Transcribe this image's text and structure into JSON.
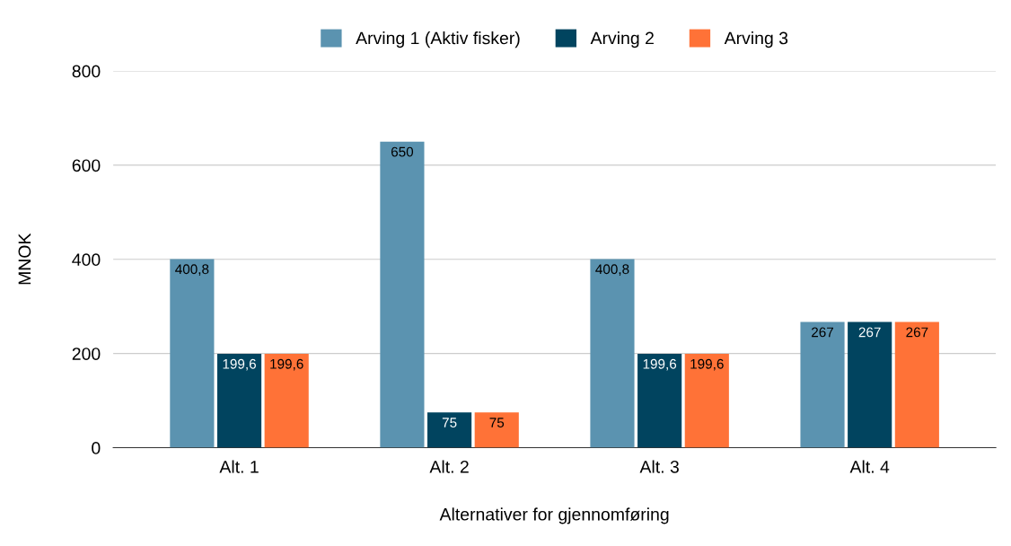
{
  "chart_data": {
    "type": "bar",
    "xlabel": "Alternativer for gjennomføring",
    "ylabel": "MNOK",
    "categories": [
      "Alt. 1",
      "Alt. 2",
      "Alt. 3",
      "Alt. 4"
    ],
    "series": [
      {
        "name": "Arving 1 (Aktiv fisker)",
        "color": "#5b93b0",
        "values": [
          400.8,
          650,
          400.8,
          267
        ],
        "value_labels": [
          "400,8",
          "650",
          "400,8",
          "267"
        ]
      },
      {
        "name": "Arving 2",
        "color": "#01445f",
        "values": [
          199.6,
          75,
          199.6,
          267
        ],
        "value_labels": [
          "199,6",
          "75",
          "199,6",
          "267"
        ]
      },
      {
        "name": "Arving 3",
        "color": "#ff7237",
        "values": [
          199.6,
          75,
          199.6,
          267
        ],
        "value_labels": [
          "199,6",
          "75",
          "199,6",
          "267"
        ]
      }
    ],
    "ylim": [
      0,
      800
    ],
    "yticks": [
      0,
      200,
      400,
      600,
      800
    ],
    "grid": "y",
    "legend": "top"
  }
}
